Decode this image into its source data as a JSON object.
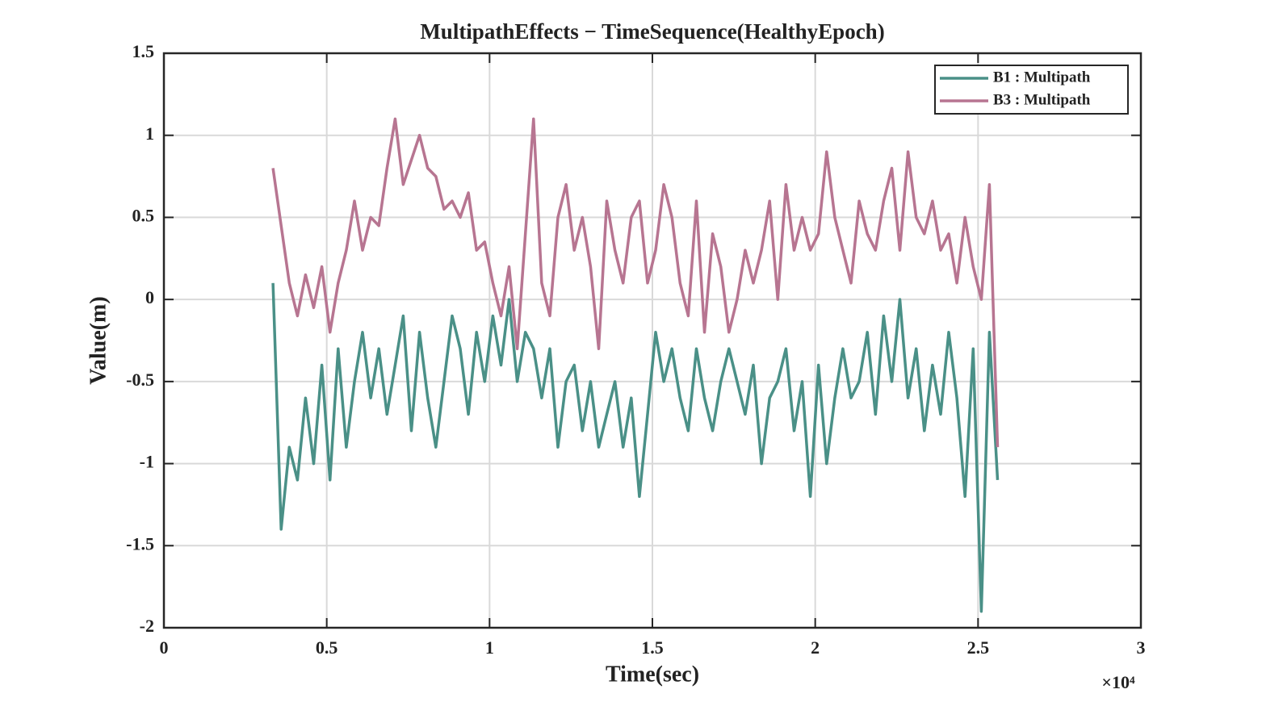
{
  "chart_data": {
    "type": "line",
    "title": "MultipathEffects − TimeSequence(HealthyEpoch)",
    "x_label": "Time(sec)",
    "y_label": "Value(m)",
    "x_exponent_label": "×10⁴",
    "xlim": [
      0,
      30000
    ],
    "xticks": [
      {
        "value": 0,
        "label": "0"
      },
      {
        "value": 5000,
        "label": "0.5"
      },
      {
        "value": 10000,
        "label": "1"
      },
      {
        "value": 15000,
        "label": "1.5"
      },
      {
        "value": 20000,
        "label": "2"
      },
      {
        "value": 25000,
        "label": "2.5"
      },
      {
        "value": 30000,
        "label": "3"
      }
    ],
    "ylim": [
      -2,
      1.5
    ],
    "yticks": [
      -2,
      -1.5,
      -1,
      -0.5,
      0,
      0.5,
      1,
      1.5
    ],
    "grid": true,
    "legend_position": "upper-right",
    "x": [
      3350,
      3600,
      3850,
      4100,
      4350,
      4600,
      4850,
      5100,
      5350,
      5600,
      5850,
      6100,
      6350,
      6600,
      6850,
      7100,
      7350,
      7600,
      7850,
      8100,
      8350,
      8600,
      8850,
      9100,
      9350,
      9600,
      9850,
      10100,
      10350,
      10600,
      10850,
      11100,
      11350,
      11600,
      11850,
      12100,
      12350,
      12600,
      12850,
      13100,
      13350,
      13600,
      13850,
      14100,
      14350,
      14600,
      14850,
      15100,
      15350,
      15600,
      15850,
      16100,
      16350,
      16600,
      16850,
      17100,
      17350,
      17600,
      17850,
      18100,
      18350,
      18600,
      18850,
      19100,
      19350,
      19600,
      19850,
      20100,
      20350,
      20600,
      20850,
      21100,
      21350,
      21600,
      21850,
      22100,
      22350,
      22600,
      22850,
      23100,
      23350,
      23600,
      23850,
      24100,
      24350,
      24600,
      24850,
      25100,
      25350,
      25600
    ],
    "series": [
      {
        "name": "B1 : Multipath",
        "color": "#4a9087",
        "values": [
          0.1,
          -1.4,
          -0.9,
          -1.1,
          -0.6,
          -1.0,
          -0.4,
          -1.1,
          -0.3,
          -0.9,
          -0.5,
          -0.2,
          -0.6,
          -0.3,
          -0.7,
          -0.4,
          -0.1,
          -0.8,
          -0.2,
          -0.6,
          -0.9,
          -0.5,
          -0.1,
          -0.3,
          -0.7,
          -0.2,
          -0.5,
          -0.1,
          -0.4,
          0.0,
          -0.5,
          -0.2,
          -0.3,
          -0.6,
          -0.3,
          -0.9,
          -0.5,
          -0.4,
          -0.8,
          -0.5,
          -0.9,
          -0.7,
          -0.5,
          -0.9,
          -0.6,
          -1.2,
          -0.7,
          -0.2,
          -0.5,
          -0.3,
          -0.6,
          -0.8,
          -0.3,
          -0.6,
          -0.8,
          -0.5,
          -0.3,
          -0.5,
          -0.7,
          -0.4,
          -1.0,
          -0.6,
          -0.5,
          -0.3,
          -0.8,
          -0.5,
          -1.2,
          -0.4,
          -1.0,
          -0.6,
          -0.3,
          -0.6,
          -0.5,
          -0.2,
          -0.7,
          -0.1,
          -0.5,
          0.0,
          -0.6,
          -0.3,
          -0.8,
          -0.4,
          -0.7,
          -0.2,
          -0.6,
          -1.2,
          -0.3,
          -1.9,
          -0.2,
          -1.1
        ]
      },
      {
        "name": "B3 : Multipath",
        "color": "#b77591",
        "values": [
          0.8,
          0.45,
          0.1,
          -0.1,
          0.15,
          -0.05,
          0.2,
          -0.2,
          0.1,
          0.3,
          0.6,
          0.3,
          0.5,
          0.45,
          0.8,
          1.1,
          0.7,
          0.85,
          1.0,
          0.8,
          0.75,
          0.55,
          0.6,
          0.5,
          0.65,
          0.3,
          0.35,
          0.1,
          -0.1,
          0.2,
          -0.3,
          0.4,
          1.1,
          0.1,
          -0.1,
          0.5,
          0.7,
          0.3,
          0.5,
          0.2,
          -0.3,
          0.6,
          0.3,
          0.1,
          0.5,
          0.6,
          0.1,
          0.3,
          0.7,
          0.5,
          0.1,
          -0.1,
          0.6,
          -0.2,
          0.4,
          0.2,
          -0.2,
          0.0,
          0.3,
          0.1,
          0.3,
          0.6,
          0.0,
          0.7,
          0.3,
          0.5,
          0.3,
          0.4,
          0.9,
          0.5,
          0.3,
          0.1,
          0.6,
          0.4,
          0.3,
          0.6,
          0.8,
          0.3,
          0.9,
          0.5,
          0.4,
          0.6,
          0.3,
          0.4,
          0.1,
          0.5,
          0.2,
          0.0,
          0.7,
          -0.9
        ]
      }
    ]
  }
}
